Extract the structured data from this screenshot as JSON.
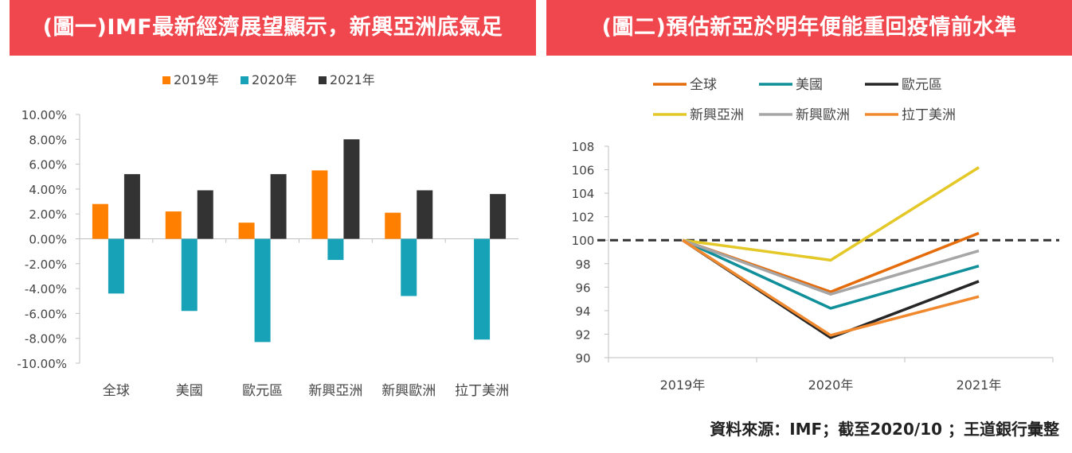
{
  "banners": {
    "left": "(圖一)IMF最新經濟展望顯示，新興亞洲底氣足",
    "right": "(圖二)預估新亞於明年便能重回疫情前水準"
  },
  "source": "資料來源：IMF；截至2020/10 ；王道銀行彙整",
  "colors": {
    "banner": "#f0464e",
    "s2019": "#ff8000",
    "s2020": "#17a2b8",
    "s2021": "#333333",
    "line_global": "#e46c0a",
    "line_us": "#0e8f99",
    "line_euro": "#262626",
    "line_em_asia": "#e3c828",
    "line_em_europe": "#a6a6a6",
    "line_latam": "#f0882e"
  },
  "chart_data": [
    {
      "type": "bar",
      "categories": [
        "全球",
        "美國",
        "歐元區",
        "新興亞洲",
        "新興歐洲",
        "拉丁美洲"
      ],
      "series": [
        {
          "name": "2019年",
          "values": [
            2.8,
            2.2,
            1.3,
            5.5,
            2.1,
            0.0
          ]
        },
        {
          "name": "2020年",
          "values": [
            -4.4,
            -5.8,
            -8.3,
            -1.7,
            -4.6,
            -8.1
          ]
        },
        {
          "name": "2021年",
          "values": [
            5.2,
            3.9,
            5.2,
            8.0,
            3.9,
            3.6
          ]
        }
      ],
      "ylim": [
        -10,
        10
      ],
      "yticks": [
        "10.00%",
        "8.00%",
        "6.00%",
        "4.00%",
        "2.00%",
        "0.00%",
        "-2.00%",
        "-4.00%",
        "-6.00%",
        "-8.00%",
        "-10.00%"
      ],
      "ytick_values": [
        10,
        8,
        6,
        4,
        2,
        0,
        -2,
        -4,
        -6,
        -8,
        -10
      ],
      "legend_position": "top-center",
      "grid": false
    },
    {
      "type": "line",
      "x": [
        "2019年",
        "2020年",
        "2021年"
      ],
      "series": [
        {
          "name": "全球",
          "values": [
            100,
            95.6,
            100.6
          ]
        },
        {
          "name": "美國",
          "values": [
            100,
            94.2,
            97.8
          ]
        },
        {
          "name": "歐元區",
          "values": [
            100,
            91.7,
            96.5
          ]
        },
        {
          "name": "新興亞洲",
          "values": [
            100,
            98.3,
            106.2
          ]
        },
        {
          "name": "新興歐洲",
          "values": [
            100,
            95.4,
            99.1
          ]
        },
        {
          "name": "拉丁美洲",
          "values": [
            100,
            91.9,
            95.2
          ]
        }
      ],
      "reference_line": 100,
      "ylim": [
        90,
        108
      ],
      "yticks": [
        "108",
        "106",
        "104",
        "102",
        "100",
        "98",
        "96",
        "94",
        "92",
        "90"
      ],
      "ytick_values": [
        108,
        106,
        104,
        102,
        100,
        98,
        96,
        94,
        92,
        90
      ],
      "legend_position": "top",
      "grid": false
    }
  ]
}
